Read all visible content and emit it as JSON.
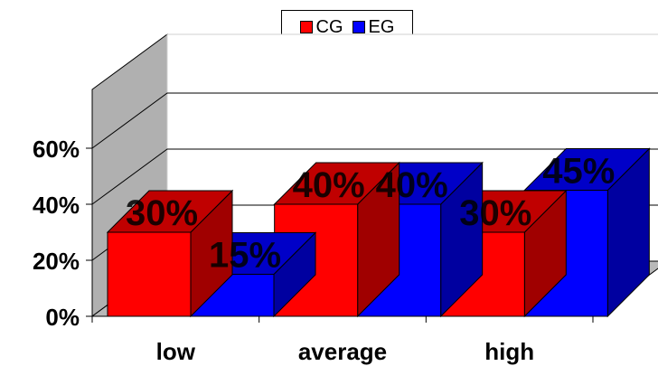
{
  "chart_data": {
    "type": "bar",
    "categories": [
      "low",
      "average",
      "high"
    ],
    "series": [
      {
        "name": "CG",
        "values": [
          30,
          40,
          30
        ],
        "labels": [
          "30%",
          "40%",
          "30%"
        ],
        "color": "#ff0000"
      },
      {
        "name": "EG",
        "values": [
          15,
          40,
          45
        ],
        "labels": [
          "15%",
          "40%",
          "45%"
        ],
        "color": "#0000ff"
      }
    ],
    "yticks": [
      "0%",
      "20%",
      "40%",
      "60%"
    ],
    "ylim": [
      0,
      60
    ],
    "legend": "top",
    "grid": true
  }
}
